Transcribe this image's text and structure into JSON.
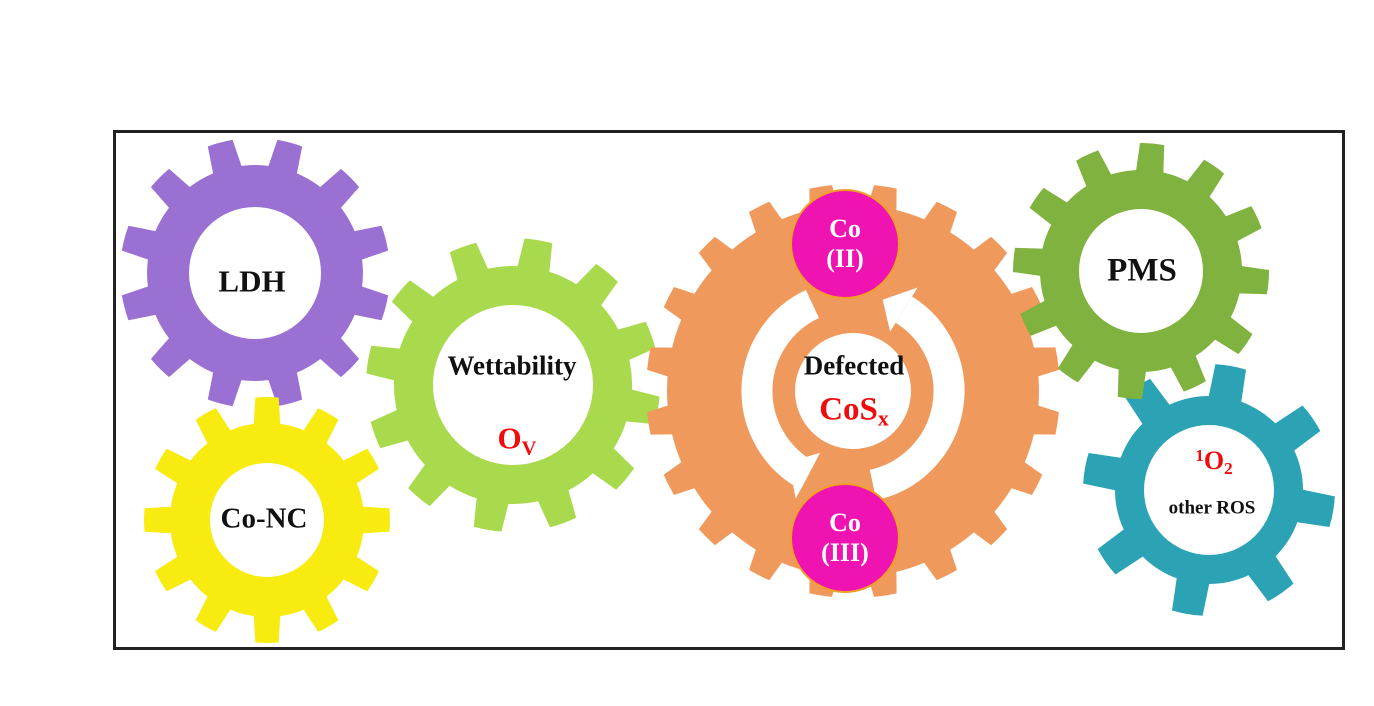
{
  "gears": {
    "ldh": {
      "label": "LDH",
      "color": "#9a70d2"
    },
    "conc": {
      "label": "Co-NC",
      "color": "#f7eb10"
    },
    "wett": {
      "label": "Wettability",
      "vacancy_base": "O",
      "vacancy_sub": "V",
      "color": "#a9d94c"
    },
    "cosx": {
      "label": "Defected",
      "formula_base": "CoS",
      "formula_sub": "x",
      "color": "#f0995c"
    },
    "pms": {
      "label": "PMS",
      "color": "#80b23f"
    },
    "ros": {
      "singlet_sup": "1",
      "singlet_base": "O",
      "singlet_sub": "2",
      "label": "other ROS",
      "color": "#2ba3b4"
    }
  },
  "badges": {
    "co2": {
      "line1": "Co",
      "line2": "(II)"
    },
    "co3": {
      "line1": "Co",
      "line2": "(III)"
    }
  },
  "colors": {
    "badge_fill": "#ef14b2",
    "badge_border": "#f0a125",
    "red_text": "#ee0d0d",
    "text": "#111111",
    "frame_border": "#222222",
    "background": "#ffffff",
    "cycle_arrow": "#ffffff"
  }
}
